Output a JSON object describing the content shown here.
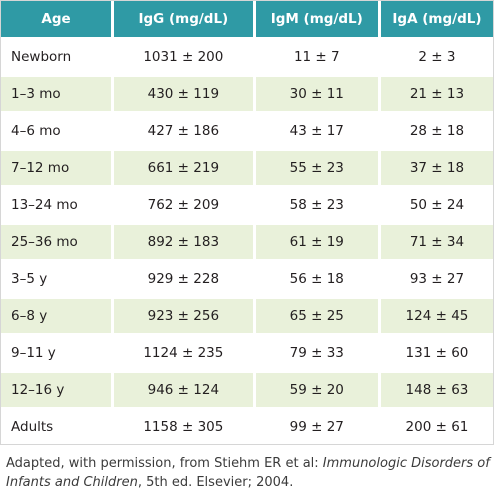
{
  "table": {
    "headers": [
      "Age",
      "IgG (mg/dL)",
      "IgM (mg/dL)",
      "IgA (mg/dL)"
    ],
    "rows": [
      [
        "Newborn",
        "1031 ± 200",
        "11 ± 7",
        "2 ± 3"
      ],
      [
        "1–3 mo",
        "430 ± 119",
        "30 ± 11",
        "21 ± 13"
      ],
      [
        "4–6 mo",
        "427 ± 186",
        "43 ± 17",
        "28 ± 18"
      ],
      [
        "7–12 mo",
        "661 ± 219",
        "55 ± 23",
        "37 ± 18"
      ],
      [
        "13–24 mo",
        "762 ± 209",
        "58 ± 23",
        "50 ± 24"
      ],
      [
        "25–36 mo",
        "892 ± 183",
        "61 ± 19",
        "71 ± 34"
      ],
      [
        "3–5 y",
        "929 ± 228",
        "56 ± 18",
        "93 ± 27"
      ],
      [
        "6–8 y",
        "923 ± 256",
        "65 ± 25",
        "124 ± 45"
      ],
      [
        "9–11 y",
        "1124 ± 235",
        "79 ± 33",
        "131 ± 60"
      ],
      [
        "12–16 y",
        "946 ± 124",
        "59 ± 20",
        "148 ± 63"
      ],
      [
        "Adults",
        "1158 ± 305",
        "99 ± 27",
        "200 ± 61"
      ]
    ]
  },
  "caption": {
    "prefix": "Adapted, with permission, from Stiehm ER et al: ",
    "title": "Immunologic Disorders of Infants and Children",
    "suffix": ", 5th ed. Elsevier; 2004."
  },
  "colors": {
    "header_bg": "#2f9aa5",
    "stripe_bg": "#e9f1da",
    "text": "#231f20"
  }
}
